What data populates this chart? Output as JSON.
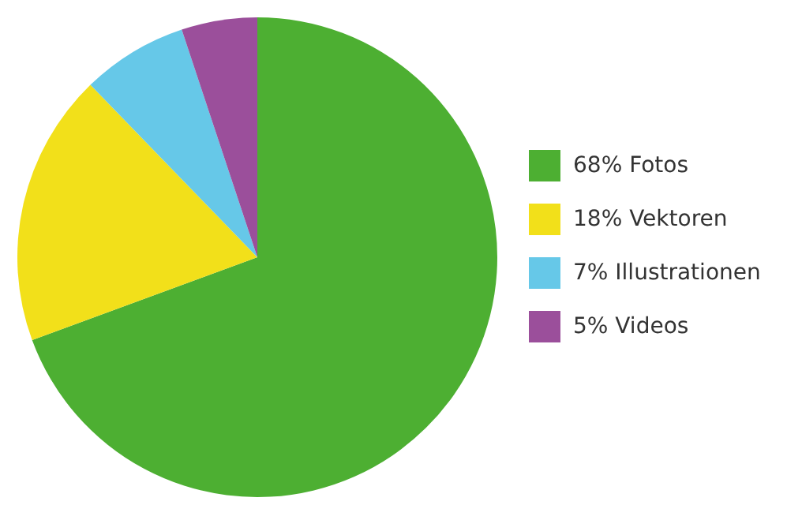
{
  "chart_data": {
    "type": "pie",
    "categories": [
      "68% Fotos",
      "18% Vektoren",
      "7% Illustrationen",
      "5% Videos"
    ],
    "values": [
      68,
      18,
      7,
      5
    ],
    "colors": [
      "#4daf32",
      "#f2e01a",
      "#66c8e8",
      "#9b4f9b"
    ],
    "legend": "right"
  }
}
